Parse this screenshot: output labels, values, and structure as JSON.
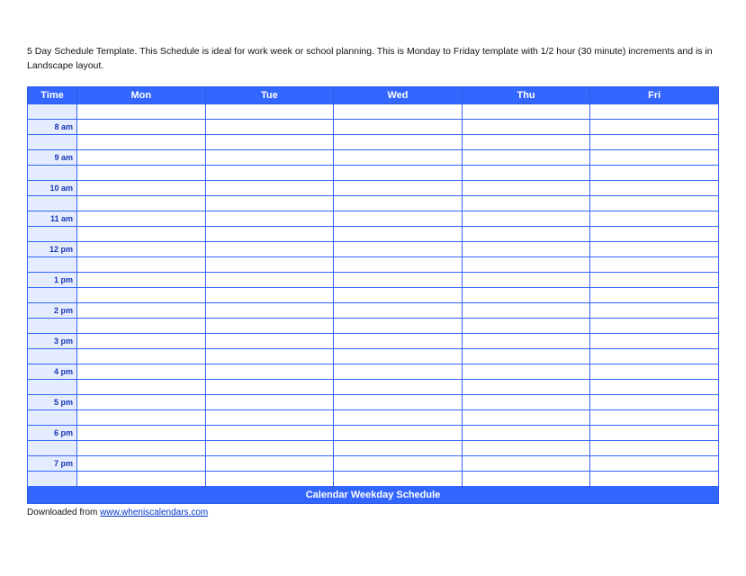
{
  "description": "5 Day Schedule Template.  This Schedule is ideal for work week or school planning.  This is Monday to Friday template with 1/2 hour (30 minute) increments and is in Landscape layout.",
  "schedule": {
    "type": "table",
    "header_bg": "#3366ff",
    "header_fg": "#ffffff",
    "border_color": "#3366ff",
    "time_col_bg": "#e6ecff",
    "time_col_fg": "#1636b3",
    "cell_bg": "#ffffff",
    "columns": [
      "Time",
      "Mon",
      "Tue",
      "Wed",
      "Thu",
      "Fri"
    ],
    "time_labels": [
      "",
      "8 am",
      "",
      "9 am",
      "",
      "10 am",
      "",
      "11 am",
      "",
      "12 pm",
      "",
      "1 pm",
      "",
      "2 pm",
      "",
      "3 pm",
      "",
      "4 pm",
      "",
      "5 pm",
      "",
      "6 pm",
      "",
      "7 pm",
      ""
    ],
    "footer_label": "Calendar Weekday Schedule"
  },
  "downloaded_prefix": "Downloaded from ",
  "downloaded_link_text": "www.wheniscalendars.com",
  "downloaded_link_href": "http://www.wheniscalendars.com"
}
